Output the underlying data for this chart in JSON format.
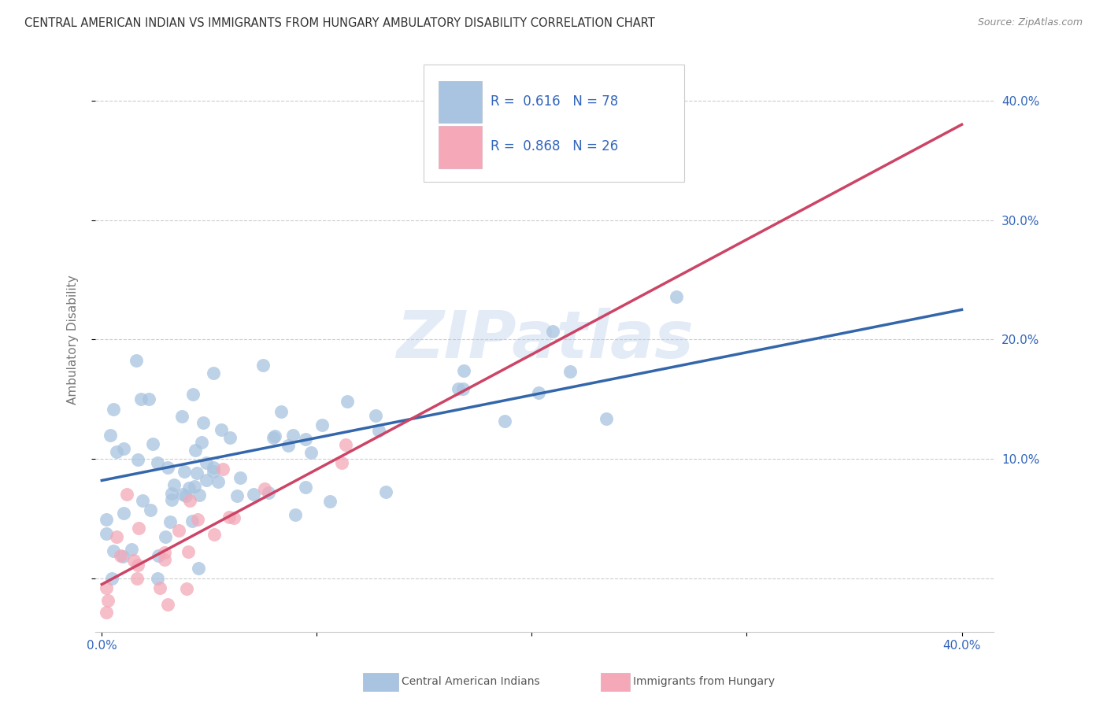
{
  "title": "CENTRAL AMERICAN INDIAN VS IMMIGRANTS FROM HUNGARY AMBULATORY DISABILITY CORRELATION CHART",
  "source": "Source: ZipAtlas.com",
  "ylabel": "Ambulatory Disability",
  "blue_R": "0.616",
  "blue_N": "78",
  "pink_R": "0.868",
  "pink_N": "26",
  "blue_scatter_color": "#A8C4E0",
  "pink_scatter_color": "#F4A8B8",
  "blue_line_color": "#3366AA",
  "pink_line_color": "#CC4466",
  "legend_text_color": "#3366BB",
  "background_color": "#FFFFFF",
  "grid_color": "#CCCCCC",
  "watermark": "ZIPatlas",
  "legend_label_blue": "Central American Indians",
  "legend_label_pink": "Immigrants from Hungary",
  "blue_trendline_y0": 0.082,
  "blue_trendline_y1": 0.225,
  "pink_trendline_y0": -0.005,
  "pink_trendline_y1": 0.38,
  "xlim_low": -0.003,
  "xlim_high": 0.415,
  "ylim_low": -0.045,
  "ylim_high": 0.445
}
